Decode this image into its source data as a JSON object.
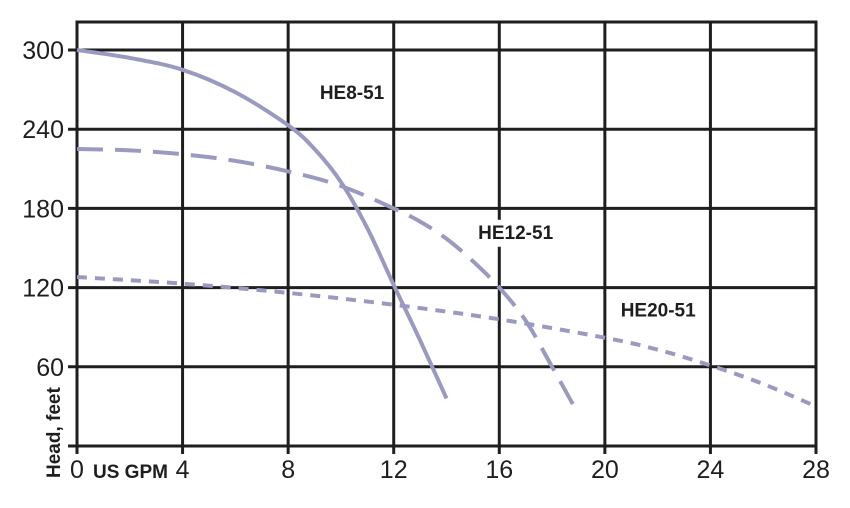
{
  "chart_data": {
    "type": "line",
    "title": "",
    "xlabel": "US GPM",
    "ylabel": "Head, feet",
    "xlim": [
      0,
      28
    ],
    "ylim": [
      0,
      300
    ],
    "x_ticks": [
      0,
      4,
      8,
      12,
      16,
      20,
      24,
      28
    ],
    "y_ticks": [
      60,
      120,
      180,
      240,
      300
    ],
    "grid": true,
    "legend": "inline labels on curves",
    "series": [
      {
        "name": "HE8-51",
        "style": "solid",
        "color": "#9a9ac0",
        "x": [
          0,
          2,
          4,
          6,
          8,
          9,
          10,
          11,
          12,
          13,
          14
        ],
        "y": [
          300,
          294,
          285,
          268,
          243,
          225,
          200,
          165,
          122,
          80,
          36
        ],
        "label_pos": [
          9.2,
          263
        ]
      },
      {
        "name": "HE12-51",
        "style": "dashed",
        "color": "#9a9ac0",
        "x": [
          0,
          2,
          4,
          6,
          8,
          10,
          12,
          13,
          14,
          15,
          16,
          17,
          18,
          19
        ],
        "y": [
          225,
          224,
          221,
          216,
          208,
          197,
          180,
          170,
          157,
          140,
          120,
          95,
          60,
          24
        ],
        "label_pos": [
          15.2,
          157
        ]
      },
      {
        "name": "HE20-51",
        "style": "dotted",
        "color": "#9a9ac0",
        "x": [
          0,
          4,
          8,
          12,
          16,
          20,
          22,
          24,
          26,
          28
        ],
        "y": [
          128,
          123,
          116,
          107,
          96,
          82,
          73,
          61,
          47,
          30
        ],
        "label_pos": [
          20.6,
          98
        ]
      }
    ]
  },
  "axes": {
    "x_label": "US GPM",
    "y_label": "Head, feet",
    "x_tick_labels": [
      "0",
      "4",
      "8",
      "12",
      "16",
      "20",
      "24",
      "28"
    ],
    "y_tick_labels": [
      "60",
      "120",
      "180",
      "240",
      "300"
    ]
  },
  "colors": {
    "curve": "#9a9ac0",
    "grid": "#1e1e1e",
    "background": "#ffffff"
  }
}
